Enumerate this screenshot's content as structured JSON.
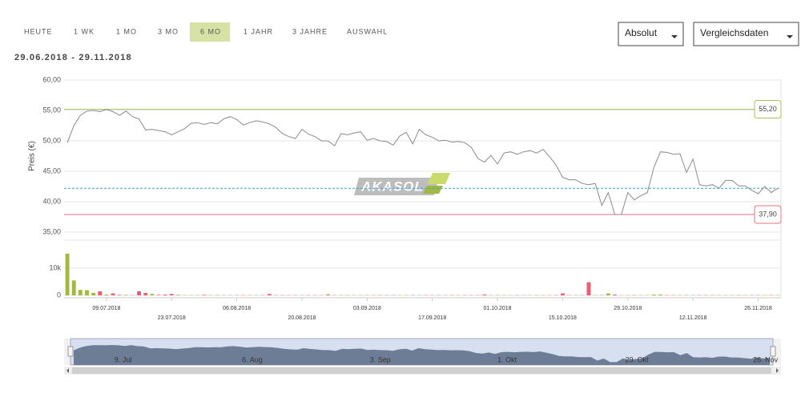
{
  "tabs": [
    "HEUTE",
    "1 WK",
    "1 MO",
    "3 MO",
    "6 MO",
    "1 JAHR",
    "3 JAHRE",
    "AUSWAHL"
  ],
  "active_tab": 4,
  "dropdowns": [
    "Absolut",
    "Vergleichsdaten"
  ],
  "date_range": "29.06.2018 - 29.11.2018",
  "watermark": "AKASOL",
  "navigator_labels": [
    "9. Jul",
    "6. Aug",
    "3. Sep",
    "1. Okt",
    "29. Okt",
    "26. Nov"
  ],
  "chart_data": [
    {
      "type": "line",
      "y_label": "Preis (€)",
      "color": "#8a8a8a",
      "grid": true,
      "categories": [
        null,
        null,
        null,
        null,
        null,
        null,
        "09.07.2018",
        null,
        null,
        null,
        null,
        null,
        null,
        null,
        null,
        null,
        "23.07.2018",
        null,
        null,
        null,
        null,
        null,
        null,
        null,
        null,
        null,
        "06.08.2018",
        null,
        null,
        null,
        null,
        null,
        null,
        null,
        null,
        null,
        "20.08.2018",
        null,
        null,
        null,
        null,
        null,
        null,
        null,
        null,
        null,
        "03.09.2018",
        null,
        null,
        null,
        null,
        null,
        null,
        null,
        null,
        null,
        "17.09.2018",
        null,
        null,
        null,
        null,
        null,
        null,
        null,
        null,
        null,
        "01.10.2018",
        null,
        null,
        null,
        null,
        null,
        null,
        null,
        null,
        null,
        "15.10.2018",
        null,
        null,
        null,
        null,
        null,
        null,
        null,
        null,
        null,
        "29.10.2018",
        null,
        null,
        null,
        null,
        null,
        null,
        null,
        null,
        null,
        "12.11.2018",
        null,
        null,
        null,
        null,
        null,
        null,
        null,
        null,
        null,
        "26.11.2018",
        null,
        null,
        null
      ],
      "values": [
        49.7,
        52.5,
        54.2,
        54.9,
        55.0,
        54.8,
        55.2,
        54.8,
        54.2,
        54.9,
        54.0,
        53.6,
        51.8,
        51.9,
        51.7,
        51.5,
        51.0,
        51.5,
        52.0,
        52.9,
        53.0,
        52.7,
        53.0,
        52.8,
        53.6,
        54.0,
        53.5,
        52.6,
        53.0,
        53.3,
        53.1,
        52.8,
        52.2,
        51.2,
        50.7,
        50.4,
        51.9,
        51.1,
        50.7,
        50.0,
        50.0,
        49.2,
        51.2,
        51.0,
        51.3,
        51.5,
        50.1,
        50.4,
        50.0,
        49.9,
        49.3,
        50.8,
        51.4,
        49.5,
        51.9,
        51.0,
        50.6,
        50.0,
        50.1,
        49.8,
        49.9,
        49.7,
        48.9,
        47.1,
        46.5,
        47.6,
        46.2,
        48.0,
        48.2,
        47.8,
        48.2,
        48.4,
        48.0,
        48.6,
        47.4,
        46.0,
        44.0,
        43.6,
        43.6,
        43.0,
        42.8,
        43.0,
        39.4,
        41.5,
        37.9,
        37.9,
        41.5,
        40.3,
        41.0,
        41.5,
        45.6,
        48.2,
        48.1,
        47.8,
        47.9,
        44.8,
        47.0,
        42.8,
        42.6,
        42.8,
        42.2,
        43.5,
        43.5,
        42.6,
        42.6,
        41.9,
        41.3,
        42.5,
        41.5,
        42.2
      ],
      "ylim": [
        35,
        60
      ],
      "yticks": [
        {
          "value": 35,
          "label": "35,00"
        },
        {
          "value": 40,
          "label": "40,00"
        },
        {
          "value": 45,
          "label": "45,00"
        },
        {
          "value": 50,
          "label": "50,00"
        },
        {
          "value": 55,
          "label": "55,00"
        },
        {
          "value": 60,
          "label": "60,00"
        }
      ],
      "annotations": [
        {
          "value": 55.2,
          "label": "55,20",
          "color": "#a9c25d"
        },
        {
          "value": 37.9,
          "label": "37,90",
          "color": "#e7717d"
        }
      ],
      "reference_line": {
        "value": 42.2,
        "color": "#3a9fd8"
      }
    },
    {
      "type": "bar",
      "up_color": "#a3b840",
      "down_color": "#ef5d75",
      "values": [
        15300,
        5500,
        2000,
        1900,
        900,
        1500,
        300,
        700,
        200,
        200,
        100,
        1500,
        900,
        500,
        200,
        300,
        500,
        200,
        100,
        100,
        100,
        200,
        100,
        100,
        100,
        100,
        100,
        100,
        100,
        100,
        100,
        500,
        100,
        100,
        100,
        100,
        100,
        100,
        100,
        100,
        400,
        100,
        100,
        100,
        100,
        100,
        100,
        100,
        100,
        100,
        100,
        100,
        100,
        100,
        100,
        100,
        100,
        100,
        100,
        100,
        100,
        100,
        100,
        100,
        300,
        100,
        100,
        100,
        100,
        100,
        100,
        100,
        100,
        100,
        100,
        100,
        700,
        100,
        100,
        100,
        4800,
        100,
        100,
        700,
        300,
        100,
        100,
        100,
        100,
        100,
        300,
        300,
        100,
        100,
        100,
        100,
        100,
        100,
        100,
        100,
        100,
        100,
        100,
        100,
        100,
        100,
        100,
        100,
        100,
        100
      ],
      "ylim": [
        0,
        20000
      ],
      "yticks": [
        0,
        {
          "value": 10000,
          "label": "10k"
        }
      ]
    }
  ]
}
